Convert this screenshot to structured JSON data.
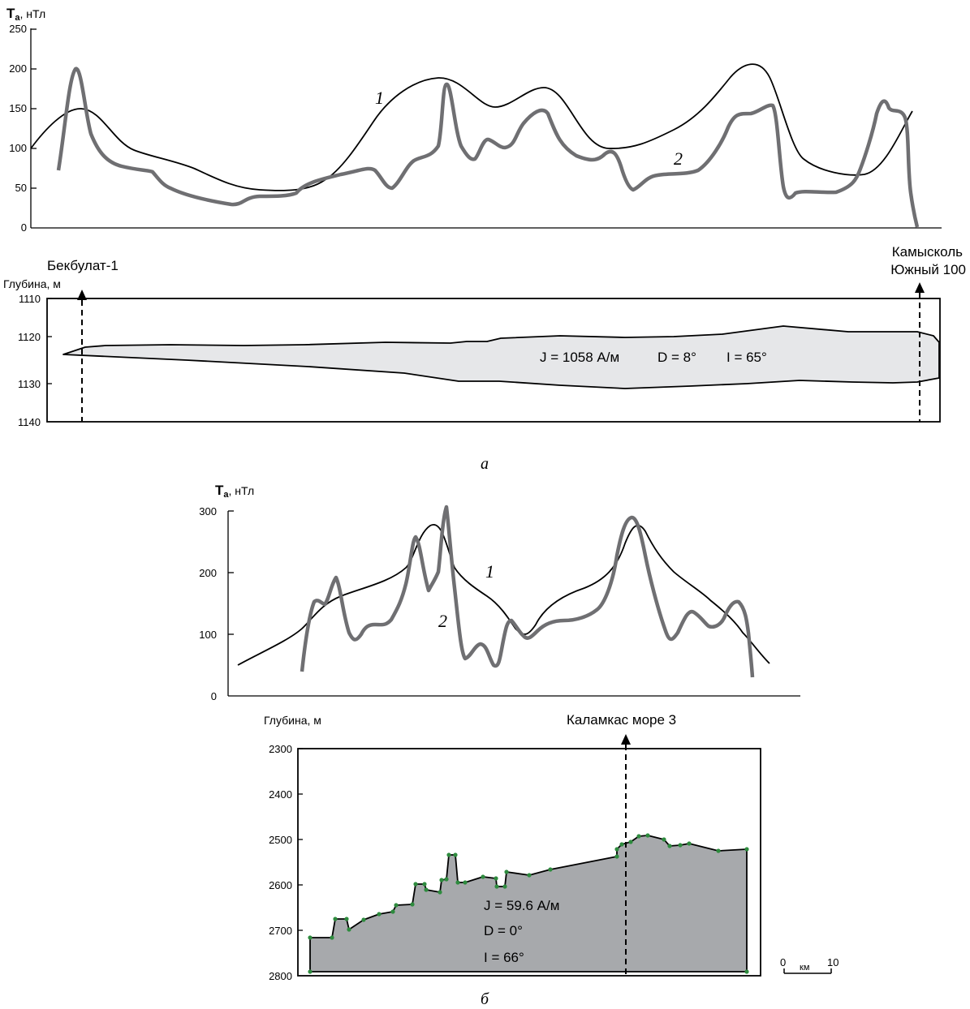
{
  "panel_a": {
    "caption": "а",
    "ta_axis": {
      "label_bold": "T",
      "label_sub": "a",
      "label_unit": ", нТл",
      "ticks": [
        "250",
        "200",
        "150",
        "100",
        "50",
        "0"
      ]
    },
    "curve1_label": "1",
    "curve2_label": "2",
    "depth_axis": {
      "label": "Глубина, м",
      "ticks": [
        "1110",
        "1120",
        "1130",
        "1140"
      ]
    },
    "well_left": "Бекбулат-1",
    "well_right_line1": "Камысколь",
    "well_right_line2": "Южный 100",
    "params": {
      "J": "J = 1058 А/м",
      "D": "D = 8°",
      "I": "I = 65°"
    }
  },
  "panel_b": {
    "caption": "б",
    "ta_axis": {
      "label_bold": "T",
      "label_sub": "a",
      "label_unit": ", нТл",
      "ticks": [
        "300",
        "200",
        "100",
        "0"
      ]
    },
    "curve1_label": "1",
    "curve2_label": "2",
    "depth_axis": {
      "label": "Глубина, м",
      "ticks": [
        "2300",
        "2400",
        "2500",
        "2600",
        "2700",
        "2800"
      ]
    },
    "well": "Каламкас море 3",
    "params": {
      "J": "J = 59.6 А/м",
      "D": "D = 0°",
      "I": "I = 66°"
    },
    "scale": {
      "start": "0",
      "unit": "км",
      "end": "10"
    }
  },
  "colors": {
    "curve1": "#000000",
    "curve2": "#6f6f72",
    "body_a": "#e6e7e9",
    "body_b": "#a7a9ac",
    "dots": "#2e8b3e"
  }
}
